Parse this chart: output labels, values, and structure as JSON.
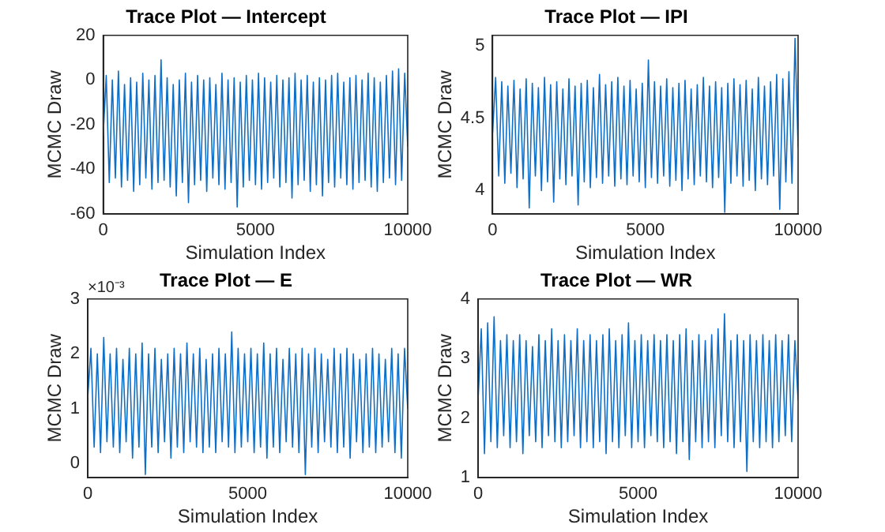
{
  "chart_data": [
    {
      "type": "line",
      "title": "Trace Plot — Intercept",
      "xlabel": "Simulation Index",
      "ylabel": "MCMC Draw",
      "xlim": [
        0,
        10000
      ],
      "xticks": [
        0,
        5000,
        10000
      ],
      "ylim": [
        -60,
        20
      ],
      "yticks": [
        -60,
        -40,
        -20,
        0,
        20
      ],
      "grid": false,
      "legend": false,
      "marker": "none",
      "x": [
        0,
        100,
        200,
        300,
        400,
        500,
        600,
        700,
        800,
        900,
        1000,
        1100,
        1200,
        1300,
        1400,
        1500,
        1600,
        1700,
        1800,
        1900,
        2000,
        2100,
        2200,
        2300,
        2400,
        2500,
        2600,
        2700,
        2800,
        2900,
        3000,
        3100,
        3200,
        3300,
        3400,
        3500,
        3600,
        3700,
        3800,
        3900,
        4000,
        4100,
        4200,
        4300,
        4400,
        4500,
        4600,
        4700,
        4800,
        4900,
        5000,
        5100,
        5200,
        5300,
        5400,
        5500,
        5600,
        5700,
        5800,
        5900,
        6000,
        6100,
        6200,
        6300,
        6400,
        6500,
        6600,
        6700,
        6800,
        6900,
        7000,
        7100,
        7200,
        7300,
        7400,
        7500,
        7600,
        7700,
        7800,
        7900,
        8000,
        8100,
        8200,
        8300,
        8400,
        8500,
        8600,
        8700,
        8800,
        8900,
        9000,
        9100,
        9200,
        9300,
        9400,
        9500,
        9600,
        9700,
        9800,
        9900,
        10000
      ],
      "series": [
        {
          "color": "#0f6fc6",
          "values": [
            -25,
            2,
            -46,
            0,
            -44,
            4,
            -48,
            -2,
            -45,
            1,
            -50,
            -1,
            -47,
            3,
            -44,
            0,
            -49,
            2,
            -46,
            9,
            -45,
            1,
            -48,
            -2,
            -52,
            0,
            -46,
            3,
            -55,
            -1,
            -47,
            2,
            -45,
            0,
            -50,
            1,
            -44,
            -2,
            -47,
            3,
            -49,
            0,
            -46,
            1,
            -57,
            -1,
            -48,
            2,
            -45,
            0,
            -47,
            3,
            -49,
            1,
            -46,
            -1,
            -44,
            2,
            -48,
            0,
            -46,
            1,
            -53,
            3,
            -47,
            0,
            -45,
            2,
            -50,
            -1,
            -47,
            1,
            -52,
            0,
            -46,
            2,
            -48,
            3,
            -44,
            -1,
            -47,
            1,
            -49,
            2,
            -46,
            0,
            -45,
            3,
            -48,
            1,
            -50,
            -1,
            -46,
            2,
            -44,
            4,
            -47,
            5,
            -45,
            3,
            -30
          ]
        }
      ]
    },
    {
      "type": "line",
      "title": "Trace Plot — IPI",
      "xlabel": "Simulation Index",
      "ylabel": "MCMC Draw",
      "xlim": [
        0,
        10000
      ],
      "xticks": [
        0,
        5000,
        10000
      ],
      "ylim": [
        3.84,
        5.07
      ],
      "yticks": [
        4,
        4.5,
        5
      ],
      "grid": false,
      "legend": false,
      "marker": "none",
      "x": [
        0,
        100,
        200,
        300,
        400,
        500,
        600,
        700,
        800,
        900,
        1000,
        1100,
        1200,
        1300,
        1400,
        1500,
        1600,
        1700,
        1800,
        1900,
        2000,
        2100,
        2200,
        2300,
        2400,
        2500,
        2600,
        2700,
        2800,
        2900,
        3000,
        3100,
        3200,
        3300,
        3400,
        3500,
        3600,
        3700,
        3800,
        3900,
        4000,
        4100,
        4200,
        4300,
        4400,
        4500,
        4600,
        4700,
        4800,
        4900,
        5000,
        5100,
        5200,
        5300,
        5400,
        5500,
        5600,
        5700,
        5800,
        5900,
        6000,
        6100,
        6200,
        6300,
        6400,
        6500,
        6600,
        6700,
        6800,
        6900,
        7000,
        7100,
        7200,
        7300,
        7400,
        7500,
        7600,
        7700,
        7800,
        7900,
        8000,
        8100,
        8200,
        8300,
        8400,
        8500,
        8600,
        8700,
        8800,
        8900,
        9000,
        9100,
        9200,
        9300,
        9400,
        9500,
        9600,
        9700,
        9800,
        9900,
        10000
      ],
      "series": [
        {
          "color": "#0f6fc6",
          "values": [
            4.4,
            4.78,
            4.1,
            4.75,
            4.05,
            4.72,
            4.12,
            4.76,
            4.02,
            4.7,
            4.08,
            4.77,
            3.88,
            4.74,
            4.1,
            4.71,
            4.0,
            4.78,
            4.06,
            4.73,
            3.92,
            4.75,
            4.08,
            4.7,
            4.04,
            4.77,
            4.1,
            4.72,
            3.9,
            4.74,
            4.06,
            4.76,
            4.02,
            4.71,
            4.09,
            4.8,
            4.05,
            4.73,
            4.1,
            4.75,
            4.03,
            4.78,
            4.08,
            4.72,
            4.04,
            4.76,
            4.1,
            4.7,
            4.06,
            4.74,
            4.02,
            4.9,
            4.09,
            4.75,
            4.05,
            4.72,
            4.1,
            4.77,
            4.03,
            4.71,
            4.07,
            4.74,
            4.0,
            4.76,
            4.08,
            4.7,
            4.04,
            4.73,
            4.1,
            4.78,
            4.06,
            4.72,
            4.02,
            4.75,
            4.09,
            4.71,
            3.85,
            4.74,
            4.05,
            4.77,
            4.1,
            4.73,
            4.03,
            4.76,
            4.07,
            4.7,
            4.0,
            4.78,
            4.08,
            4.72,
            4.04,
            4.75,
            4.1,
            4.8,
            3.87,
            4.77,
            4.06,
            4.82,
            4.05,
            5.05,
            4.3
          ]
        }
      ]
    },
    {
      "type": "line",
      "title": "Trace Plot — E",
      "xlabel": "Simulation Index",
      "ylabel": "MCMC Draw",
      "annotations": [
        "×10⁻³"
      ],
      "xlim": [
        0,
        10000
      ],
      "xticks": [
        0,
        5000,
        10000
      ],
      "ylim": [
        -0.25,
        3
      ],
      "yticks": [
        0,
        1,
        2,
        3
      ],
      "grid": false,
      "legend": false,
      "marker": "none",
      "x": [
        0,
        100,
        200,
        300,
        400,
        500,
        600,
        700,
        800,
        900,
        1000,
        1100,
        1200,
        1300,
        1400,
        1500,
        1600,
        1700,
        1800,
        1900,
        2000,
        2100,
        2200,
        2300,
        2400,
        2500,
        2600,
        2700,
        2800,
        2900,
        3000,
        3100,
        3200,
        3300,
        3400,
        3500,
        3600,
        3700,
        3800,
        3900,
        4000,
        4100,
        4200,
        4300,
        4400,
        4500,
        4600,
        4700,
        4800,
        4900,
        5000,
        5100,
        5200,
        5300,
        5400,
        5500,
        5600,
        5700,
        5800,
        5900,
        6000,
        6100,
        6200,
        6300,
        6400,
        6500,
        6600,
        6700,
        6800,
        6900,
        7000,
        7100,
        7200,
        7300,
        7400,
        7500,
        7600,
        7700,
        7800,
        7900,
        8000,
        8100,
        8200,
        8300,
        8400,
        8500,
        8600,
        8700,
        8800,
        8900,
        9000,
        9100,
        9200,
        9300,
        9400,
        9500,
        9600,
        9700,
        9800,
        9900,
        10000
      ],
      "series": [
        {
          "color": "#0f6fc6",
          "values": [
            1.2,
            2.1,
            0.3,
            2.0,
            0.2,
            2.3,
            0.4,
            2.0,
            0.3,
            2.1,
            0.2,
            1.9,
            0.4,
            2.1,
            0.1,
            2.0,
            0.3,
            2.2,
            -0.2,
            2.0,
            0.3,
            2.1,
            0.2,
            1.9,
            0.4,
            2.0,
            0.1,
            2.1,
            0.3,
            2.0,
            0.2,
            2.2,
            0.4,
            2.0,
            0.3,
            2.1,
            0.2,
            1.9,
            0.3,
            2.0,
            0.2,
            2.1,
            0.4,
            2.0,
            0.3,
            2.4,
            0.2,
            2.1,
            0.3,
            2.0,
            0.4,
            2.1,
            0.2,
            2.0,
            0.3,
            2.2,
            0.1,
            2.0,
            0.3,
            2.1,
            0.2,
            1.9,
            0.4,
            2.1,
            0.3,
            2.0,
            0.2,
            2.1,
            -0.2,
            2.0,
            0.3,
            2.1,
            0.2,
            2.0,
            0.4,
            1.9,
            0.3,
            2.1,
            0.2,
            2.0,
            0.3,
            2.1,
            0.1,
            2.0,
            0.4,
            1.9,
            0.2,
            2.0,
            0.3,
            2.1,
            0.2,
            2.0,
            0.3,
            1.9,
            0.4,
            2.1,
            0.2,
            2.0,
            0.1,
            2.1,
            1.0
          ]
        }
      ]
    },
    {
      "type": "line",
      "title": "Trace Plot — WR",
      "xlabel": "Simulation Index",
      "ylabel": "MCMC Draw",
      "xlim": [
        0,
        10000
      ],
      "xticks": [
        0,
        5000,
        10000
      ],
      "ylim": [
        1,
        4
      ],
      "yticks": [
        1,
        2,
        3,
        4
      ],
      "grid": false,
      "legend": false,
      "marker": "none",
      "x": [
        0,
        100,
        200,
        300,
        400,
        500,
        600,
        700,
        800,
        900,
        1000,
        1100,
        1200,
        1300,
        1400,
        1500,
        1600,
        1700,
        1800,
        1900,
        2000,
        2100,
        2200,
        2300,
        2400,
        2500,
        2600,
        2700,
        2800,
        2900,
        3000,
        3100,
        3200,
        3300,
        3400,
        3500,
        3600,
        3700,
        3800,
        3900,
        4000,
        4100,
        4200,
        4300,
        4400,
        4500,
        4600,
        4700,
        4800,
        4900,
        5000,
        5100,
        5200,
        5300,
        5400,
        5500,
        5600,
        5700,
        5800,
        5900,
        6000,
        6100,
        6200,
        6300,
        6400,
        6500,
        6600,
        6700,
        6800,
        6900,
        7000,
        7100,
        7200,
        7300,
        7400,
        7500,
        7600,
        7700,
        7800,
        7900,
        8000,
        8100,
        8200,
        8300,
        8400,
        8500,
        8600,
        8700,
        8800,
        8900,
        9000,
        9100,
        9200,
        9300,
        9400,
        9500,
        9600,
        9700,
        9800,
        9900,
        10000
      ],
      "series": [
        {
          "color": "#0f6fc6",
          "values": [
            2.3,
            3.5,
            1.4,
            3.6,
            1.6,
            3.7,
            1.5,
            3.3,
            1.7,
            3.4,
            1.5,
            3.3,
            1.6,
            3.4,
            1.4,
            3.3,
            1.7,
            3.2,
            1.6,
            3.4,
            1.5,
            3.3,
            1.7,
            3.5,
            1.6,
            3.3,
            1.5,
            3.4,
            1.6,
            3.3,
            1.7,
            3.5,
            1.5,
            3.3,
            1.6,
            3.4,
            1.5,
            3.3,
            1.6,
            3.4,
            1.4,
            3.5,
            1.6,
            3.3,
            1.5,
            3.4,
            1.7,
            3.6,
            1.5,
            3.3,
            1.6,
            3.4,
            1.5,
            3.3,
            1.7,
            3.4,
            1.6,
            3.3,
            1.5,
            3.4,
            1.6,
            3.3,
            1.4,
            3.4,
            1.6,
            3.5,
            1.3,
            3.3,
            1.6,
            3.4,
            1.5,
            3.3,
            1.6,
            3.4,
            1.5,
            3.5,
            1.7,
            3.75,
            1.6,
            3.3,
            1.5,
            3.4,
            1.6,
            3.3,
            1.1,
            3.4,
            1.6,
            3.3,
            1.5,
            3.4,
            1.6,
            3.3,
            1.5,
            3.4,
            1.6,
            3.3,
            1.7,
            3.4,
            1.6,
            3.3,
            2.3
          ]
        }
      ]
    }
  ]
}
